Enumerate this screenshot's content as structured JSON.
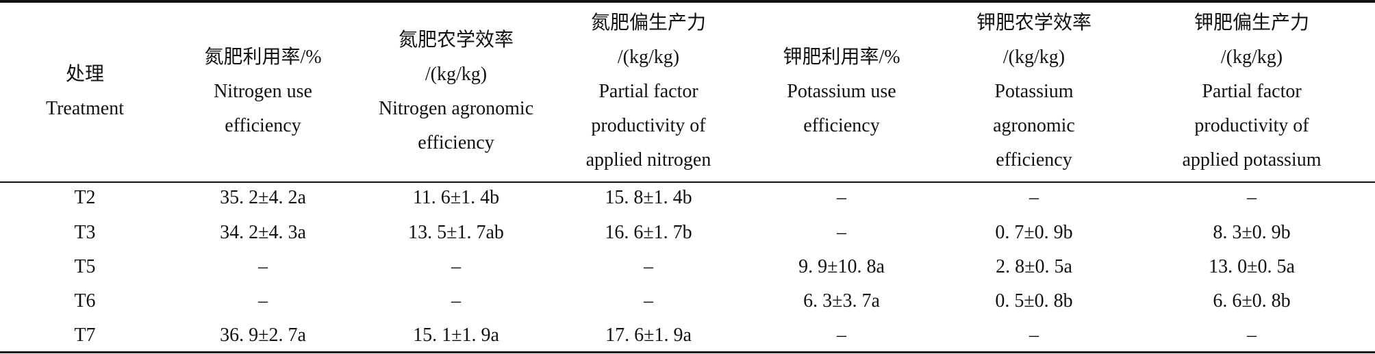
{
  "table": {
    "header": [
      [
        "处理",
        "Treatment"
      ],
      [
        "氮肥利用率/%",
        "Nitrogen use",
        "efficiency"
      ],
      [
        "氮肥农学效率",
        "/(kg/kg)",
        "Nitrogen agronomic",
        "efficiency"
      ],
      [
        "氮肥偏生产力",
        "/(kg/kg)",
        "Partial factor",
        "productivity of",
        "applied nitrogen"
      ],
      [
        "钾肥利用率/%",
        "Potassium use",
        "efficiency"
      ],
      [
        "钾肥农学效率",
        "/(kg/kg)",
        "Potassium",
        "agronomic",
        "efficiency"
      ],
      [
        "钾肥偏生产力",
        "/(kg/kg)",
        "Partial factor",
        "productivity of",
        "applied potassium"
      ]
    ],
    "rows": [
      [
        "T2",
        "35. 2±4. 2a",
        "11. 6±1. 4b",
        "15. 8±1. 4b",
        "–",
        "–",
        "–"
      ],
      [
        "T3",
        "34. 2±4. 3a",
        "13. 5±1. 7ab",
        "16. 6±1. 7b",
        "–",
        "0. 7±0. 9b",
        "8. 3±0. 9b"
      ],
      [
        "T5",
        "–",
        "–",
        "–",
        "9. 9±10. 8a",
        "2. 8±0. 5a",
        "13. 0±0. 5a"
      ],
      [
        "T6",
        "–",
        "–",
        "–",
        "6. 3±3. 7a",
        "0. 5±0. 8b",
        "6. 6±0. 8b"
      ],
      [
        "T7",
        "36. 9±2. 7a",
        "15. 1±1. 9a",
        "17. 6±1. 9a",
        "–",
        "–",
        "–"
      ]
    ]
  }
}
